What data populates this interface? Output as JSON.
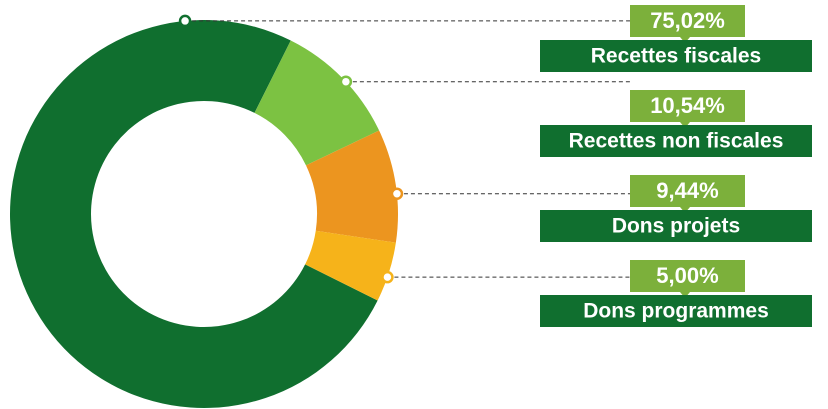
{
  "chart_data": {
    "type": "pie",
    "categories": [
      "Recettes fiscales",
      "Recettes non fiscales",
      "Dons projets",
      "Dons programmes"
    ],
    "values": [
      75.02,
      10.54,
      9.44,
      5.0
    ],
    "value_labels": [
      "75,02%",
      "10,54%",
      "9,44%",
      "5,00%"
    ],
    "colors": [
      "#106f2f",
      "#7cc242",
      "#ec951f",
      "#f6b31a"
    ],
    "donut": true
  }
}
